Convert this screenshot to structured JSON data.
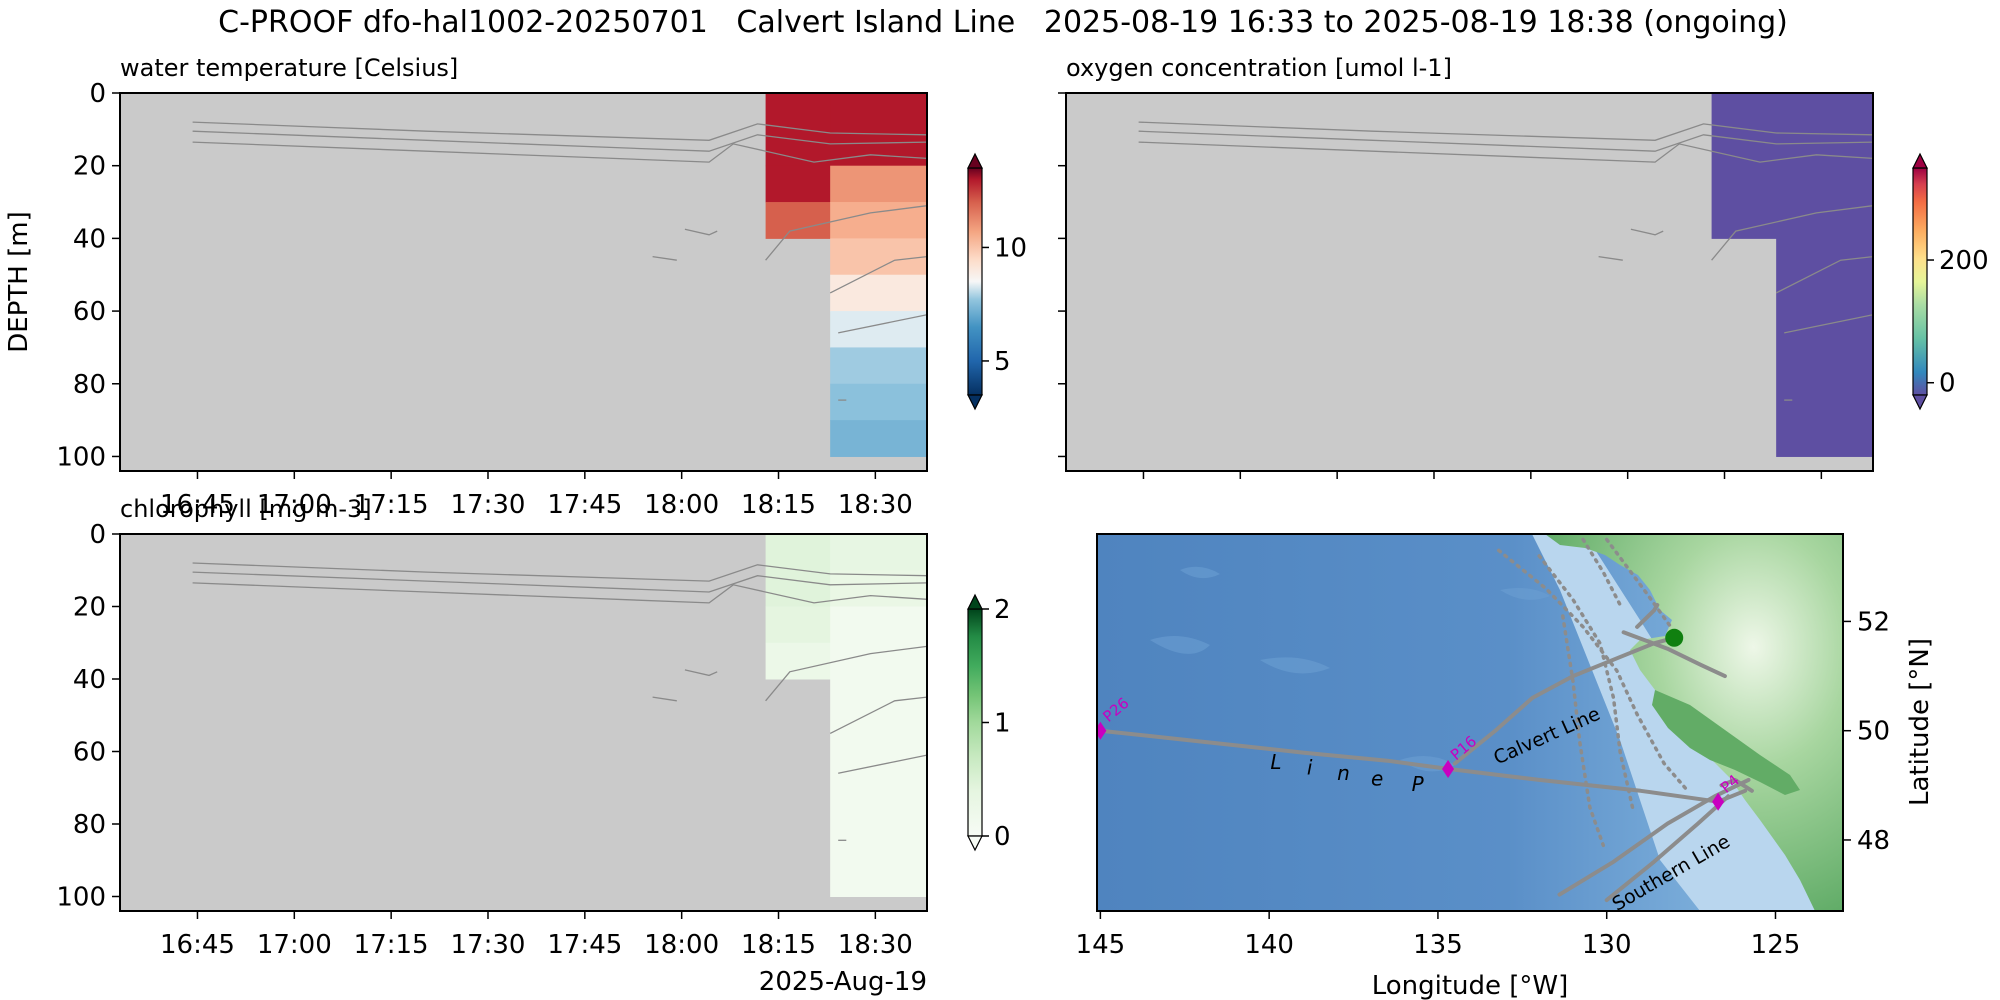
{
  "figure": {
    "title": "C-PROOF dfo-hal1002-20250701   Calvert Island Line   2025-08-19 16:33 to 2025-08-19 18:38 (ongoing)"
  },
  "colors": {
    "plot_bg": "#cacaca",
    "contour": "#8a8a8a",
    "track": "#8c8c8c",
    "station": "#c800c0",
    "glider": "#108010",
    "ocean_deep": "#4a7bb8",
    "ocean_shallow": "#c8def0",
    "land_low": "#58a860",
    "land_high": "#f4faf0"
  },
  "chart_data": [
    {
      "type": "heatmap",
      "id": "temperature",
      "title": "water temperature [Celsius]",
      "ylabel": "DEPTH [m]",
      "xlabel": "",
      "xlim": [
        "2025-08-19 16:33",
        "2025-08-19 18:38"
      ],
      "ylim": [
        104,
        0
      ],
      "x_ticks": [
        "16:45",
        "17:00",
        "17:15",
        "17:30",
        "17:45",
        "18:00",
        "18:15",
        "18:30"
      ],
      "y_ticks": [
        0,
        20,
        40,
        60,
        80,
        100
      ],
      "x_date_label": "",
      "colormap": "RdBu_r",
      "colorbar": {
        "vmin": 3.5,
        "vmax": 13.5,
        "ticks": [
          5,
          10
        ]
      },
      "columns": [
        {
          "x_start": "2025-08-19 18:13",
          "x_end": "2025-08-19 18:23",
          "cells": [
            {
              "depth_top": 0,
              "depth_bottom": 20,
              "value": 13.0
            },
            {
              "depth_top": 20,
              "depth_bottom": 30,
              "value": 13.0
            },
            {
              "depth_top": 30,
              "depth_bottom": 40,
              "value": 12.0
            }
          ]
        },
        {
          "x_start": "2025-08-19 18:23",
          "x_end": "2025-08-19 18:38",
          "cells": [
            {
              "depth_top": 0,
              "depth_bottom": 20,
              "value": 13.0
            },
            {
              "depth_top": 20,
              "depth_bottom": 30,
              "value": 11.0
            },
            {
              "depth_top": 30,
              "depth_bottom": 40,
              "value": 10.5
            },
            {
              "depth_top": 40,
              "depth_bottom": 50,
              "value": 10.0
            },
            {
              "depth_top": 50,
              "depth_bottom": 60,
              "value": 9.0
            },
            {
              "depth_top": 60,
              "depth_bottom": 70,
              "value": 8.3
            },
            {
              "depth_top": 70,
              "depth_bottom": 80,
              "value": 7.8
            },
            {
              "depth_top": 80,
              "depth_bottom": 90,
              "value": 7.6
            },
            {
              "depth_top": 90,
              "depth_bottom": 100,
              "value": 7.3
            }
          ]
        }
      ]
    },
    {
      "type": "heatmap",
      "id": "oxygen",
      "title": "oxygen concentration [umol l-1]",
      "ylabel": "",
      "xlabel": "",
      "xlim": [
        "2025-08-19 16:33",
        "2025-08-19 18:38"
      ],
      "ylim": [
        104,
        0
      ],
      "x_ticks": [],
      "y_ticks": [],
      "x_date_label": "",
      "colormap": "Spectral_r",
      "colorbar": {
        "vmin": -20,
        "vmax": 350,
        "ticks": [
          0,
          200
        ]
      },
      "columns": [
        {
          "x_start": "2025-08-19 18:13",
          "x_end": "2025-08-19 18:23",
          "cells": [
            {
              "depth_top": 0,
              "depth_bottom": 40,
              "value": -20
            }
          ]
        },
        {
          "x_start": "2025-08-19 18:23",
          "x_end": "2025-08-19 18:38",
          "cells": [
            {
              "depth_top": 0,
              "depth_bottom": 100,
              "value": -20
            }
          ]
        }
      ]
    },
    {
      "type": "heatmap",
      "id": "chlorophyll",
      "title": "chlorophyll [mg m-3]",
      "ylabel": "",
      "xlabel": "",
      "xlim": [
        "2025-08-19 16:33",
        "2025-08-19 18:38"
      ],
      "ylim": [
        104,
        0
      ],
      "x_ticks": [
        "16:45",
        "17:00",
        "17:15",
        "17:30",
        "17:45",
        "18:00",
        "18:15",
        "18:30"
      ],
      "y_ticks": [
        0,
        20,
        40,
        60,
        80,
        100
      ],
      "x_date_label": "2025-Aug-19",
      "colormap": "Greens",
      "colorbar": {
        "vmin": 0,
        "vmax": 2,
        "ticks": [
          0,
          1,
          2
        ]
      },
      "columns": [
        {
          "x_start": "2025-08-19 18:13",
          "x_end": "2025-08-19 18:23",
          "cells": [
            {
              "depth_top": 0,
              "depth_bottom": 20,
              "value": 0.45
            },
            {
              "depth_top": 20,
              "depth_bottom": 30,
              "value": 0.4
            },
            {
              "depth_top": 30,
              "depth_bottom": 40,
              "value": 0.25
            }
          ]
        },
        {
          "x_start": "2025-08-19 18:23",
          "x_end": "2025-08-19 18:38",
          "cells": [
            {
              "depth_top": 0,
              "depth_bottom": 10,
              "value": 0.35
            },
            {
              "depth_top": 10,
              "depth_bottom": 20,
              "value": 0.3
            },
            {
              "depth_top": 20,
              "depth_bottom": 100,
              "value": 0.12
            }
          ]
        }
      ]
    },
    {
      "type": "scatter",
      "id": "map",
      "title": "",
      "xlabel": "Longitude [°W]",
      "ylabel": "Latitude [°N]",
      "xlim": [
        145.1,
        123
      ],
      "ylim": [
        46.7,
        53.6
      ],
      "x_ticks": [
        145,
        140,
        135,
        130,
        125
      ],
      "y_ticks": [
        48,
        50,
        52
      ],
      "stations": [
        {
          "name": "P26",
          "lon": 145,
          "lat": 50
        },
        {
          "name": "P16",
          "lon": 134.7,
          "lat": 49.3
        },
        {
          "name": "P4",
          "lon": 126.7,
          "lat": 48.7
        }
      ],
      "line_labels": [
        {
          "text": "L",
          "lon": 139.8,
          "lat": 49.3
        },
        {
          "text": "i",
          "lon": 138.8,
          "lat": 49.2
        },
        {
          "text": "n",
          "lon": 137.8,
          "lat": 49.1
        },
        {
          "text": "e",
          "lon": 136.8,
          "lat": 49.0
        },
        {
          "text": "P",
          "lon": 135.6,
          "lat": 48.9
        },
        {
          "text": "Calvert Line",
          "lon": 131.7,
          "lat": 49.8
        },
        {
          "text": "Southern Line",
          "lon": 128.0,
          "lat": 47.3
        }
      ],
      "glider_position": {
        "lon": 128.0,
        "lat": 51.7
      },
      "tracks": [
        {
          "name": "",
          "points": [
            [
              145,
              50.0
            ],
            [
              142,
              49.8
            ],
            [
              139,
              49.6
            ],
            [
              136.5,
              49.45
            ],
            [
              134.7,
              49.3
            ],
            [
              132,
              49.1
            ],
            [
              129,
              48.9
            ],
            [
              126.7,
              48.7
            ],
            [
              125.9,
              48.9
            ]
          ]
        },
        {
          "name": "",
          "points": [
            [
              134.5,
              49.4
            ],
            [
              133.3,
              50.0
            ],
            [
              132.2,
              50.6
            ],
            [
              131,
              51.0
            ],
            [
              129.8,
              51.3
            ],
            [
              128.6,
              51.6
            ],
            [
              128.0,
              51.7
            ]
          ]
        },
        {
          "name": "",
          "points": [
            [
              131.4,
              47.0
            ],
            [
              129.8,
              47.6
            ],
            [
              128.2,
              48.3
            ],
            [
              126.8,
              48.8
            ],
            [
              125.8,
              49.1
            ]
          ]
        },
        {
          "name": "",
          "points": [
            [
              130.0,
              46.9
            ],
            [
              128.6,
              47.6
            ],
            [
              127.3,
              48.3
            ],
            [
              126.4,
              48.8
            ]
          ]
        },
        {
          "name": "",
          "points": [
            [
              129.5,
              51.8
            ],
            [
              128.2,
              51.5
            ],
            [
              127.2,
              51.2
            ],
            [
              126.5,
              51.0
            ]
          ]
        },
        {
          "name": "",
          "points": [
            [
              129.1,
              51.9
            ],
            [
              128.6,
              52.2
            ],
            [
              128.5,
              52.3
            ]
          ]
        },
        {
          "name": "",
          "points": [
            [
              126.6,
              49.0
            ],
            [
              126.2,
              49.1
            ],
            [
              125.7,
              48.9
            ]
          ]
        }
      ],
      "dotted_tracks": [
        {
          "name": "",
          "points": [
            [
              133.2,
              53.3
            ],
            [
              131.8,
              52.6
            ],
            [
              130.7,
              51.9
            ],
            [
              129.7,
              51.1
            ],
            [
              129.1,
              50.3
            ],
            [
              128.3,
              49.4
            ],
            [
              127.6,
              48.9
            ]
          ]
        },
        {
          "name": "",
          "points": [
            [
              132.0,
              53.2
            ],
            [
              131.0,
              52.4
            ],
            [
              130.2,
              51.6
            ],
            [
              129.8,
              50.6
            ],
            [
              129.6,
              49.6
            ],
            [
              129.2,
              48.5
            ]
          ]
        },
        {
          "name": "",
          "points": [
            [
              131.3,
              52.1
            ],
            [
              131.0,
              50.9
            ],
            [
              130.8,
              49.8
            ],
            [
              130.5,
              48.6
            ],
            [
              130.1,
              47.9
            ]
          ]
        },
        {
          "name": "",
          "points": [
            [
              130.7,
              53.5
            ],
            [
              130.1,
              52.9
            ],
            [
              129.6,
              52.3
            ]
          ]
        },
        {
          "name": "",
          "points": [
            [
              130.0,
              53.5
            ],
            [
              129.4,
              53.0
            ],
            [
              128.8,
              52.5
            ],
            [
              128.1,
              51.9
            ]
          ]
        }
      ]
    }
  ]
}
